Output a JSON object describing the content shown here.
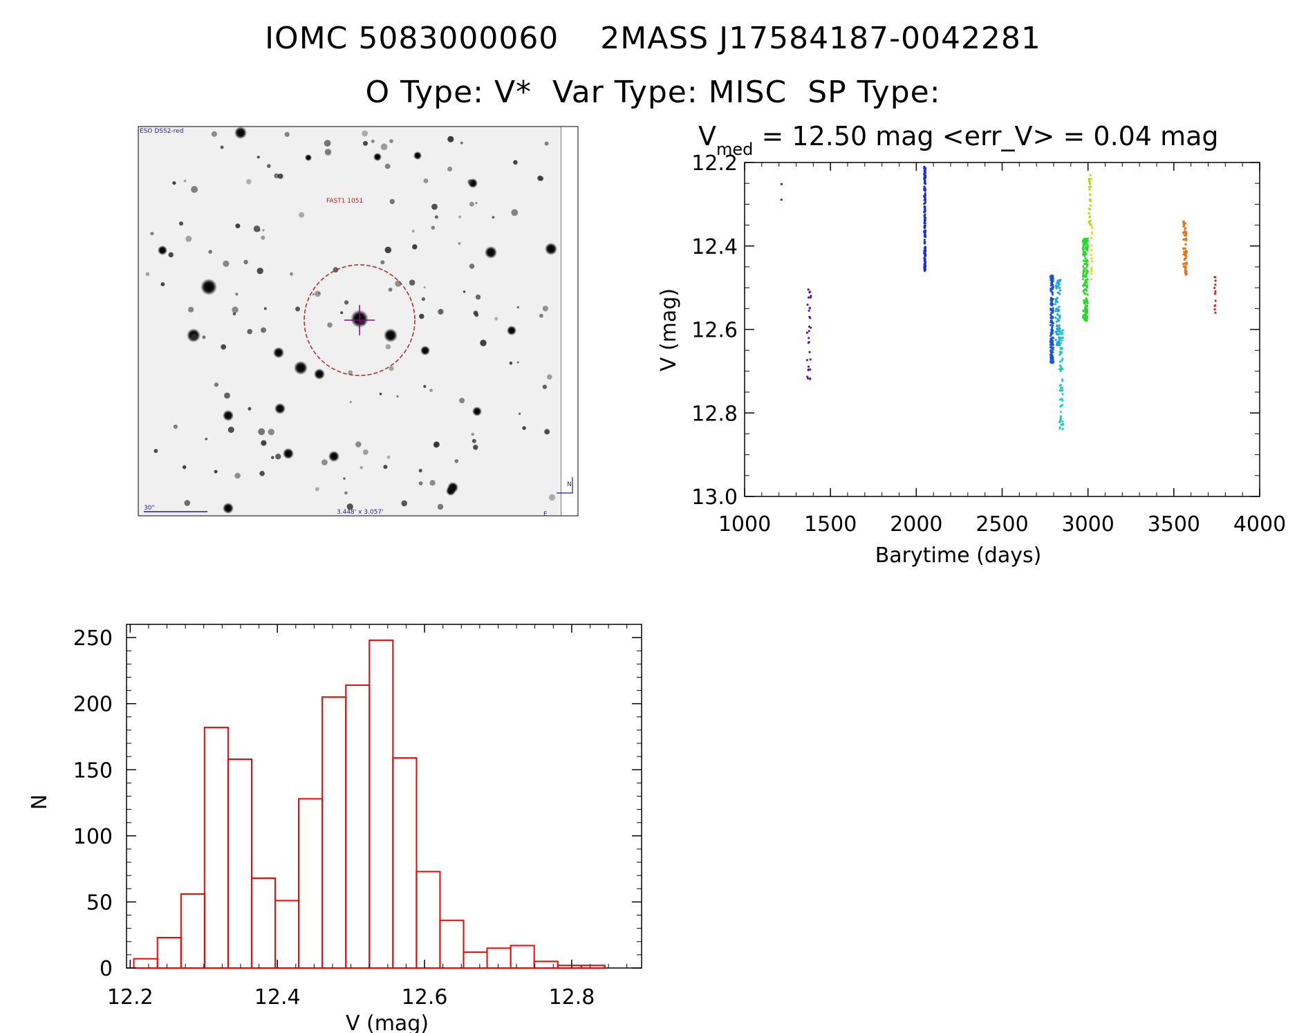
{
  "header": {
    "line1": "IOMC 5083000060    2MASS J17584187-0042281",
    "line2": "O Type: V*  Var Type: MISC  SP Type:"
  },
  "finder_chart": {
    "survey_label": "ESO DSS2-red",
    "target_label": "FAST1 1051",
    "scale_label": "30\"",
    "field_label": "3.448' x 3.057'",
    "north_label": "N",
    "east_label": "E",
    "colors": {
      "circle": "#b22222",
      "crosshair": "#8b008b",
      "annotation": "#1a1aa0"
    }
  },
  "chart_data": [
    {
      "type": "scatter",
      "title_parts": {
        "symbol": "V",
        "subscript": "med",
        "rest": " = 12.50 mag <err_V> = 0.04 mag"
      },
      "xlabel": "Barytime (days)",
      "ylabel": "V (mag)",
      "xlim": [
        1000,
        4000
      ],
      "ylim": [
        13.0,
        12.2
      ],
      "y_inverted": true,
      "xticks": [
        1000,
        1500,
        2000,
        2500,
        3000,
        3500,
        4000
      ],
      "yticks": [
        12.2,
        12.4,
        12.6,
        12.8,
        13.0
      ],
      "ytick_labels": [
        "12.2",
        "12.4",
        "12.6",
        "12.8",
        "13.0"
      ],
      "groups": [
        {
          "x": 1215,
          "x_spread": 2,
          "y_min": 12.25,
          "y_max": 12.29,
          "n": 2,
          "color": "#7a0a3a"
        },
        {
          "x": 1375,
          "x_spread": 12,
          "y_min": 12.5,
          "y_max": 12.72,
          "n": 30,
          "color": "#5a1aa8"
        },
        {
          "x": 2050,
          "x_spread": 4,
          "y_min": 12.21,
          "y_max": 12.46,
          "n": 170,
          "color": "#1a2ed8"
        },
        {
          "x": 2790,
          "x_spread": 8,
          "y_min": 12.47,
          "y_max": 12.68,
          "n": 150,
          "color": "#1850e0"
        },
        {
          "x": 2825,
          "x_spread": 14,
          "y_min": 12.48,
          "y_max": 12.64,
          "n": 80,
          "color": "#18a8e0"
        },
        {
          "x": 2845,
          "x_spread": 10,
          "y_min": 12.6,
          "y_max": 12.84,
          "n": 60,
          "color": "#18d0b0"
        },
        {
          "x": 2985,
          "x_spread": 14,
          "y_min": 12.38,
          "y_max": 12.58,
          "n": 160,
          "color": "#28d828"
        },
        {
          "x": 3010,
          "x_spread": 6,
          "y_min": 12.23,
          "y_max": 12.35,
          "n": 30,
          "color": "#a8e010"
        },
        {
          "x": 3020,
          "x_spread": 5,
          "y_min": 12.35,
          "y_max": 12.48,
          "n": 15,
          "color": "#e8d810"
        },
        {
          "x": 3565,
          "x_spread": 10,
          "y_min": 12.34,
          "y_max": 12.47,
          "n": 60,
          "color": "#f07010"
        },
        {
          "x": 3740,
          "x_spread": 3,
          "y_min": 12.47,
          "y_max": 12.56,
          "n": 12,
          "color": "#e02010"
        }
      ]
    },
    {
      "type": "bar",
      "subtype": "histogram",
      "xlabel": "V (mag)",
      "ylabel": "N",
      "xlim": [
        12.195,
        12.895
      ],
      "ylim": [
        0,
        260
      ],
      "xticks": [
        12.2,
        12.4,
        12.6,
        12.8
      ],
      "xtick_labels": [
        "12.2",
        "12.4",
        "12.6",
        "12.8"
      ],
      "yticks": [
        0,
        50,
        100,
        150,
        200,
        250
      ],
      "bin_start": 12.205,
      "bin_width": 0.032,
      "values": [
        7,
        23,
        56,
        182,
        158,
        68,
        51,
        128,
        205,
        214,
        248,
        159,
        73,
        36,
        12,
        15,
        17,
        5,
        2,
        2
      ],
      "color": "#ff0000"
    }
  ]
}
